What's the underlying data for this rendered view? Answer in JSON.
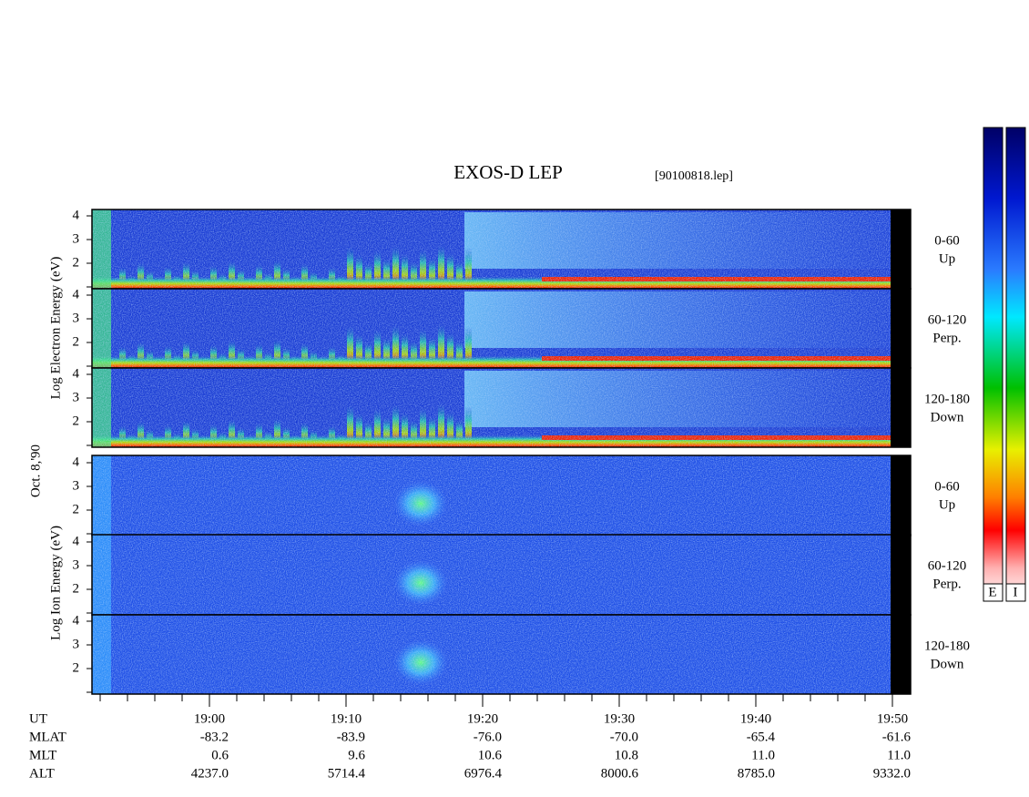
{
  "title": "EXOS-D LEP",
  "file": "[90100818.lep]",
  "date_label": "Oct. 8,'90",
  "electron_axis_label": "Log Electron Energy (eV)",
  "ion_axis_label": "Log Ion Energy (eV)",
  "energy_ticks": [
    2,
    3,
    4
  ],
  "electron_panels": [
    {
      "angle": "0-60",
      "direction": "Up"
    },
    {
      "angle": "60-120",
      "direction": "Perp."
    },
    {
      "angle": "120-180",
      "direction": "Down"
    }
  ],
  "ion_panels": [
    {
      "angle": "0-60",
      "direction": "Up"
    },
    {
      "angle": "60-120",
      "direction": "Perp."
    },
    {
      "angle": "120-180",
      "direction": "Down"
    }
  ],
  "axis_table": {
    "rows": [
      [
        "UT",
        "19:00",
        "19:10",
        "19:20",
        "19:30",
        "19:40",
        "19:50"
      ],
      [
        "MLAT",
        "-83.2",
        "-83.9",
        "-76.0",
        "-70.0",
        "-65.4",
        "-61.6"
      ],
      [
        "MLT",
        "0.6",
        "9.6",
        "10.6",
        "10.8",
        "11.0",
        "11.0"
      ],
      [
        "ALT",
        "4237.0",
        "5714.4",
        "6976.4",
        "8000.6",
        "8785.0",
        "9332.0"
      ]
    ]
  },
  "colorbar_labels": [
    "E",
    "I"
  ]
}
